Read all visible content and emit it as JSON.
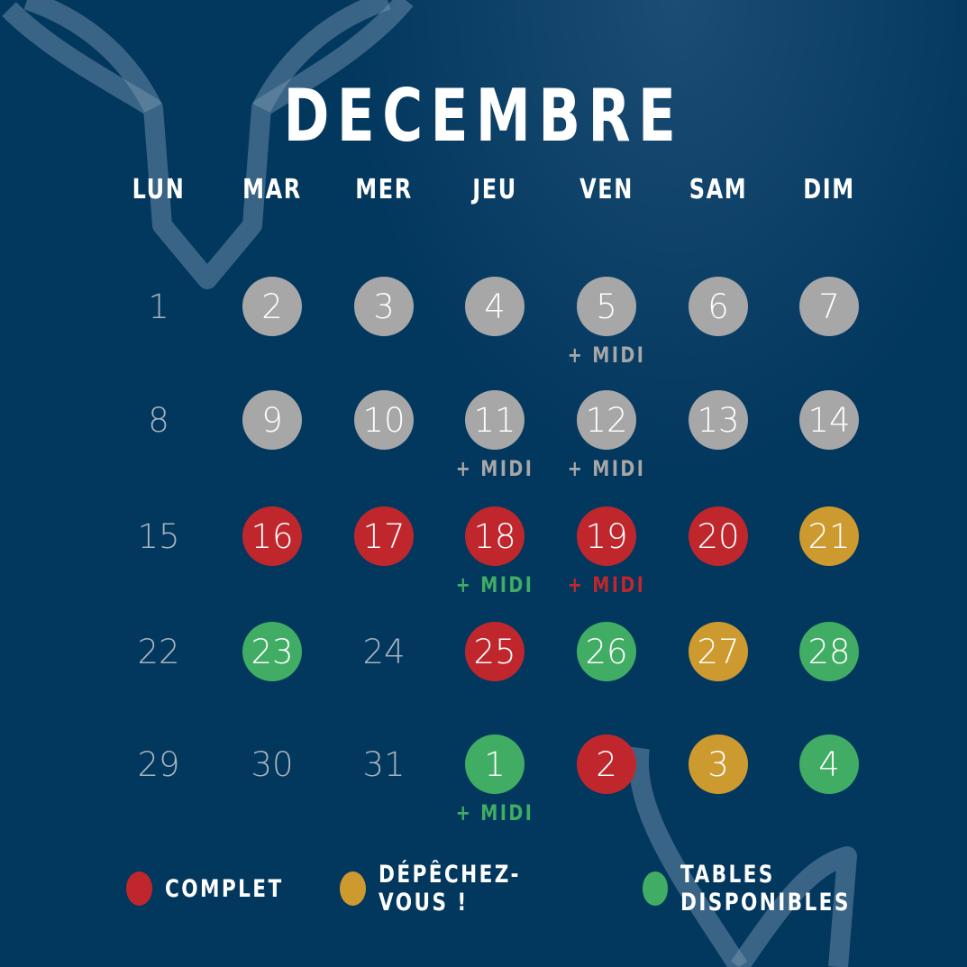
{
  "title": "DECEMBRE",
  "colors": {
    "background": "#02375e",
    "complet": "#c0272d",
    "hurry": "#cc9a2e",
    "available": "#41ad64",
    "past": "#a7a7a7"
  },
  "weekdays": [
    "LUN",
    "MAR",
    "MER",
    "JEU",
    "VEN",
    "SAM",
    "DIM"
  ],
  "midi_label": "+ MIDI",
  "weeks": [
    [
      {
        "day": "1",
        "status": "none"
      },
      {
        "day": "2",
        "status": "past"
      },
      {
        "day": "3",
        "status": "past"
      },
      {
        "day": "4",
        "status": "past"
      },
      {
        "day": "5",
        "status": "past",
        "midi": "past"
      },
      {
        "day": "6",
        "status": "past"
      },
      {
        "day": "7",
        "status": "past"
      }
    ],
    [
      {
        "day": "8",
        "status": "none"
      },
      {
        "day": "9",
        "status": "past"
      },
      {
        "day": "10",
        "status": "past"
      },
      {
        "day": "11",
        "status": "past",
        "midi": "past"
      },
      {
        "day": "12",
        "status": "past",
        "midi": "past"
      },
      {
        "day": "13",
        "status": "past"
      },
      {
        "day": "14",
        "status": "past"
      }
    ],
    [
      {
        "day": "15",
        "status": "none"
      },
      {
        "day": "16",
        "status": "complet"
      },
      {
        "day": "17",
        "status": "complet"
      },
      {
        "day": "18",
        "status": "complet",
        "midi": "available"
      },
      {
        "day": "19",
        "status": "complet",
        "midi": "complet"
      },
      {
        "day": "20",
        "status": "complet"
      },
      {
        "day": "21",
        "status": "hurry"
      }
    ],
    [
      {
        "day": "22",
        "status": "none"
      },
      {
        "day": "23",
        "status": "available"
      },
      {
        "day": "24",
        "status": "none"
      },
      {
        "day": "25",
        "status": "complet"
      },
      {
        "day": "26",
        "status": "available"
      },
      {
        "day": "27",
        "status": "hurry"
      },
      {
        "day": "28",
        "status": "available"
      }
    ],
    [
      {
        "day": "29",
        "status": "none"
      },
      {
        "day": "30",
        "status": "none"
      },
      {
        "day": "31",
        "status": "none"
      },
      {
        "day": "1",
        "status": "available",
        "midi": "available"
      },
      {
        "day": "2",
        "status": "complet"
      },
      {
        "day": "3",
        "status": "hurry"
      },
      {
        "day": "4",
        "status": "available"
      }
    ]
  ],
  "legend": [
    {
      "label": "COMPLET",
      "status": "complet"
    },
    {
      "label": "DÉPÊCHEZ-VOUS !",
      "status": "hurry"
    },
    {
      "label": "TABLES DISPONIBLES",
      "status": "available"
    }
  ]
}
